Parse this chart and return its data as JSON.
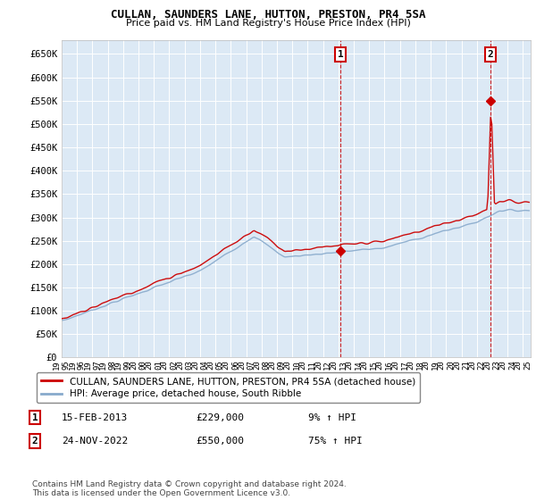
{
  "title": "CULLAN, SAUNDERS LANE, HUTTON, PRESTON, PR4 5SA",
  "subtitle": "Price paid vs. HM Land Registry's House Price Index (HPI)",
  "ylim": [
    0,
    680000
  ],
  "xlim_start": 1995.0,
  "xlim_end": 2025.5,
  "yticks": [
    0,
    50000,
    100000,
    150000,
    200000,
    250000,
    300000,
    350000,
    400000,
    450000,
    500000,
    550000,
    600000,
    650000
  ],
  "ytick_labels": [
    "£0",
    "£50K",
    "£100K",
    "£150K",
    "£200K",
    "£250K",
    "£300K",
    "£350K",
    "£400K",
    "£450K",
    "£500K",
    "£550K",
    "£600K",
    "£650K"
  ],
  "xtick_years": [
    1995,
    1996,
    1997,
    1998,
    1999,
    2000,
    2001,
    2002,
    2003,
    2004,
    2005,
    2006,
    2007,
    2008,
    2009,
    2010,
    2011,
    2012,
    2013,
    2014,
    2015,
    2016,
    2017,
    2018,
    2019,
    2020,
    2021,
    2022,
    2023,
    2024,
    2025
  ],
  "plot_bg_color": "#dce9f5",
  "grid_color": "#ffffff",
  "red_line_color": "#cc0000",
  "blue_line_color": "#88aacc",
  "marker_color": "#cc0000",
  "dashed_line_color": "#cc0000",
  "annotation_box_color": "#cc0000",
  "sale1_x": 2013.12,
  "sale1_y": 229000,
  "sale1_label": "1",
  "sale1_date": "15-FEB-2013",
  "sale1_price": "£229,000",
  "sale1_hpi": "9% ↑ HPI",
  "sale2_x": 2022.9,
  "sale2_y": 550000,
  "sale2_label": "2",
  "sale2_date": "24-NOV-2022",
  "sale2_price": "£550,000",
  "sale2_hpi": "75% ↑ HPI",
  "legend_line1": "CULLAN, SAUNDERS LANE, HUTTON, PRESTON, PR4 5SA (detached house)",
  "legend_line2": "HPI: Average price, detached house, South Ribble",
  "footer": "Contains HM Land Registry data © Crown copyright and database right 2024.\nThis data is licensed under the Open Government Licence v3.0."
}
